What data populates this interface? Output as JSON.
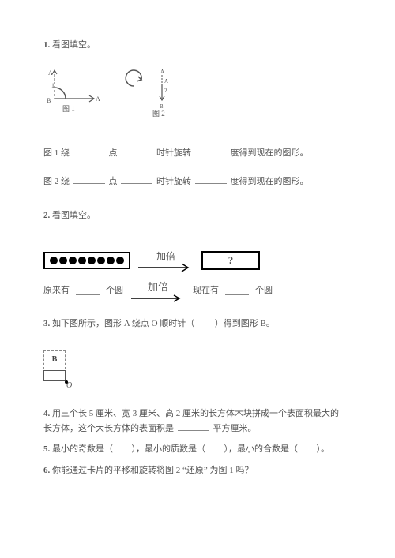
{
  "q1": {
    "heading": "1.",
    "title": "看图填空。",
    "fig1": {
      "labels": {
        "A_top": "A",
        "A_right": "A",
        "B": "B",
        "one": "1",
        "caption": "图 1"
      },
      "style": {
        "stroke": "#4a4a4a",
        "dash": "3,2",
        "solid": "#4a4a4a",
        "text": "#555"
      }
    },
    "fig2": {
      "labels": {
        "topA": "A",
        "midA": "A",
        "two": "2",
        "B": "B",
        "caption": "图 2"
      },
      "style": {
        "stroke": "#4a4a4a"
      }
    },
    "sentence1": {
      "pre": "图 1 绕",
      "mid1": "点",
      "mid2": "时针旋转",
      "tail": "度得到现在的图形。"
    },
    "sentence2": {
      "pre": "图 2 绕",
      "mid1": "点",
      "mid2": "时针旋转",
      "tail": "度得到现在的图形。"
    }
  },
  "q2": {
    "heading": "2.",
    "title": "看图填空。",
    "dots_count": 8,
    "arrow_label": "加倍",
    "right_box": "?",
    "line2": {
      "l1": "原来有",
      "l2": "个圆",
      "mid": "加倍",
      "r1": "现在有",
      "r2": "个圆"
    },
    "style": {
      "arrow_stroke": "#000",
      "box_border": "#000"
    }
  },
  "q3": {
    "heading": "3.",
    "text_pre": "如下图所示，图形 A 绕点 O 顺时针（",
    "text_post": "）得到图形 B。",
    "fig": {
      "B": "B",
      "O": "O"
    }
  },
  "q4": {
    "heading": "4.",
    "text_l1": "用三个长 5 厘米、宽 3 厘米、高 2 厘米的长方体木块拼成一个表面积最大的",
    "text_l2a": "长方体，这个大长方体的表面积是",
    "text_l2b": "平方厘米。"
  },
  "q5": {
    "heading": "5.",
    "s1": "最小的奇数是（",
    "s2": "），最小的质数是（",
    "s3": "），最小的合数是（",
    "s4": "）。"
  },
  "q6": {
    "heading": "6.",
    "text": "你能通过卡片的平移和旋转将图 2 “还原” 为图 1 吗？"
  }
}
